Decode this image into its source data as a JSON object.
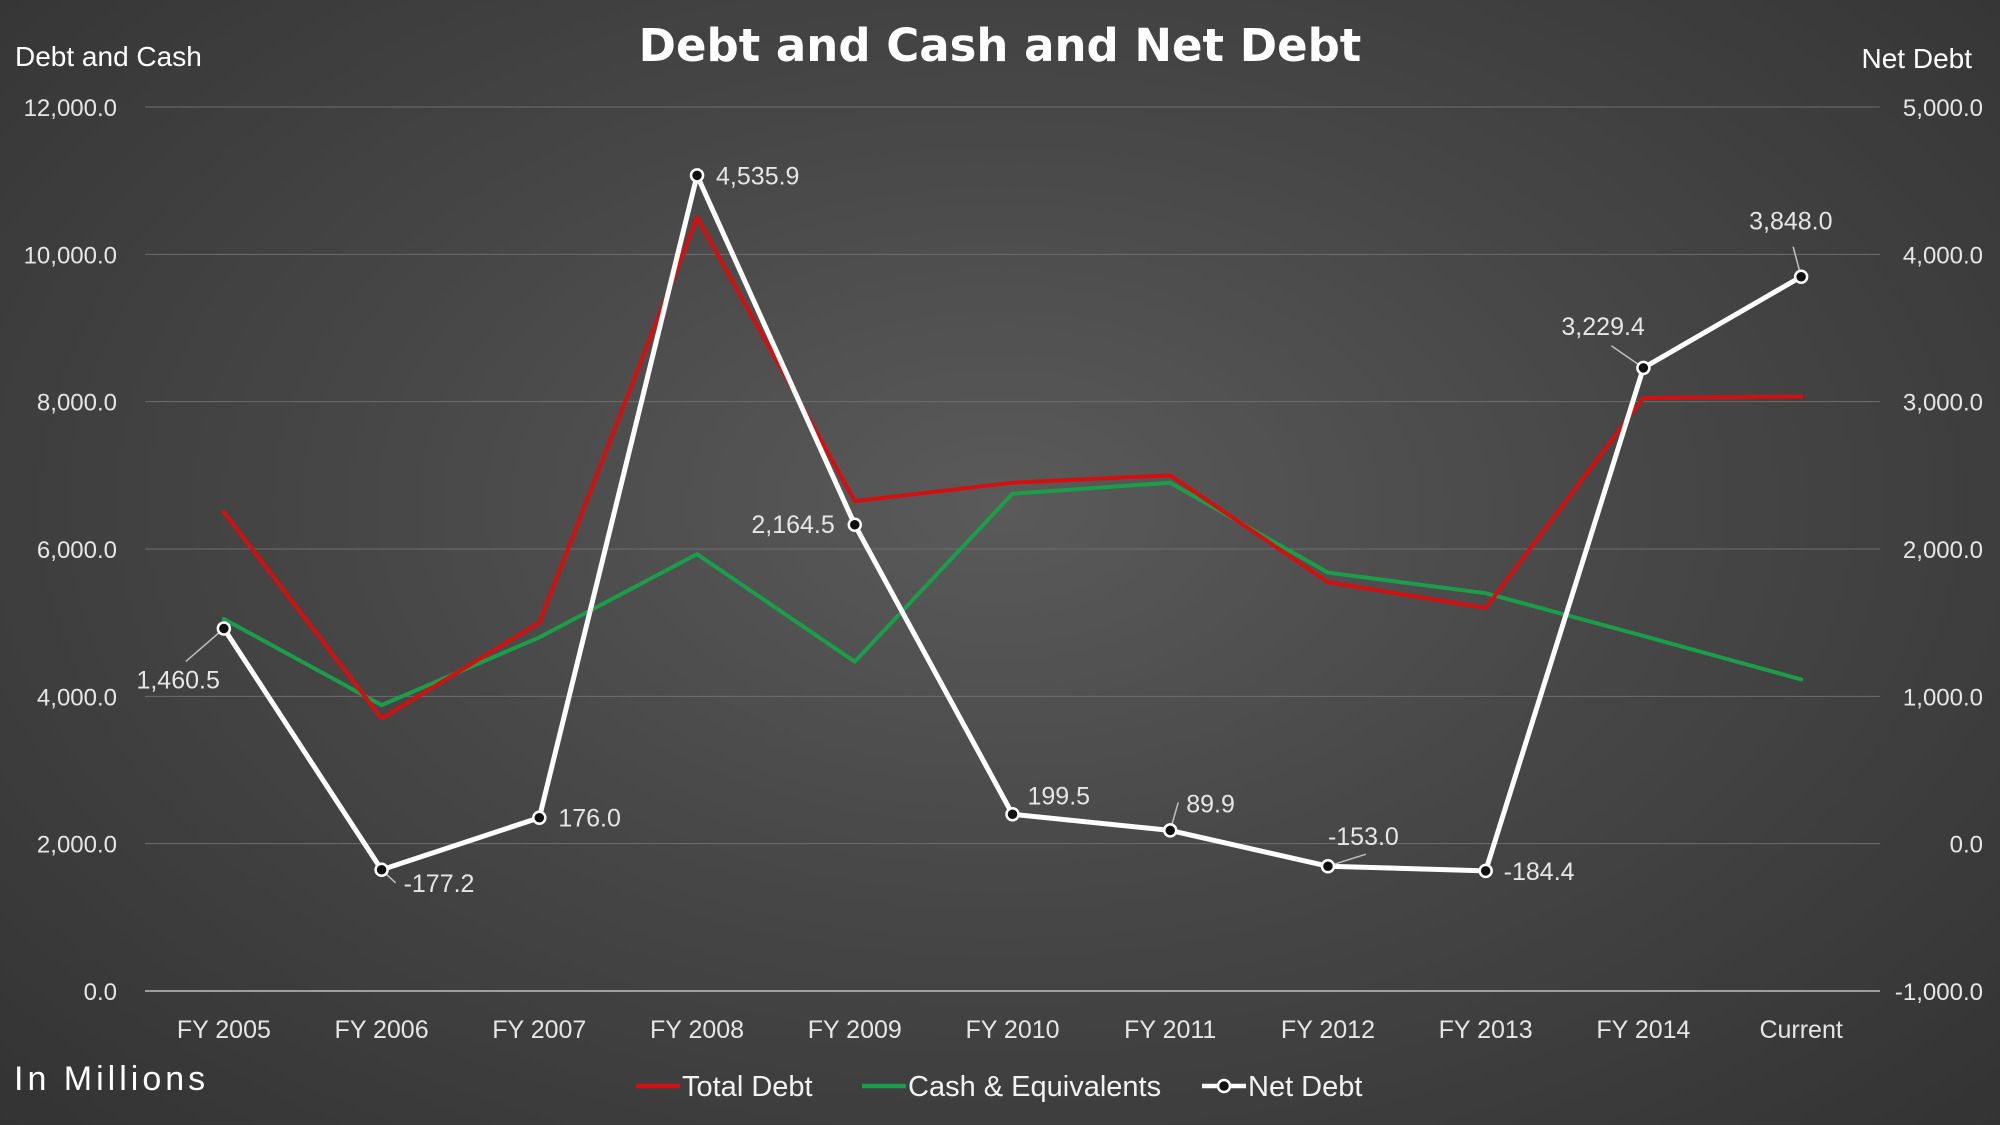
{
  "chart_data": {
    "type": "line",
    "title": "Debt and Cash and Net Debt",
    "y_left_label": "Debt and Cash",
    "y_right_label": "Net Debt",
    "footnote": "In Millions",
    "categories": [
      "FY 2005",
      "FY 2006",
      "FY 2007",
      "FY 2008",
      "FY 2009",
      "FY 2010",
      "FY 2011",
      "FY 2012",
      "FY 2013",
      "FY 2014",
      "Current"
    ],
    "y_left": {
      "min": 0,
      "max": 12000,
      "step": 2000,
      "ticks": [
        "0.0",
        "2,000.0",
        "4,000.0",
        "6,000.0",
        "8,000.0",
        "10,000.0",
        "12,000.0"
      ]
    },
    "y_right": {
      "min": -1000,
      "max": 5000,
      "step": 1000,
      "ticks": [
        "-1,000.0",
        "0.0",
        "1,000.0",
        "2,000.0",
        "3,000.0",
        "4,000.0",
        "5,000.0"
      ]
    },
    "grid": true,
    "legend_position": "bottom",
    "series": [
      {
        "name": "Total Debt",
        "axis": "left",
        "color": "#d40f0f",
        "values": [
          6500,
          3700,
          5000,
          10500,
          6650,
          6900,
          7000,
          5550,
          5200,
          8050,
          8070
        ]
      },
      {
        "name": "Cash & Equivalents",
        "axis": "left",
        "color": "#1a9e4a",
        "values": [
          5050,
          3880,
          4800,
          5930,
          4470,
          6750,
          6900,
          5680,
          5400,
          4820,
          4230
        ]
      },
      {
        "name": "Net Debt",
        "axis": "right",
        "color": "#ffffff",
        "markers": true,
        "values": [
          1460.5,
          -177.2,
          176.0,
          4535.9,
          2164.5,
          199.5,
          89.9,
          -153.0,
          -184.4,
          3229.4,
          3848.0
        ],
        "labels": [
          "1,460.5",
          "-177.2",
          "176.0",
          "4,535.9",
          "2,164.5",
          "199.5",
          "89.9",
          "-153.0",
          "-184.4",
          "3,229.4",
          "3,848.0"
        ]
      }
    ]
  }
}
